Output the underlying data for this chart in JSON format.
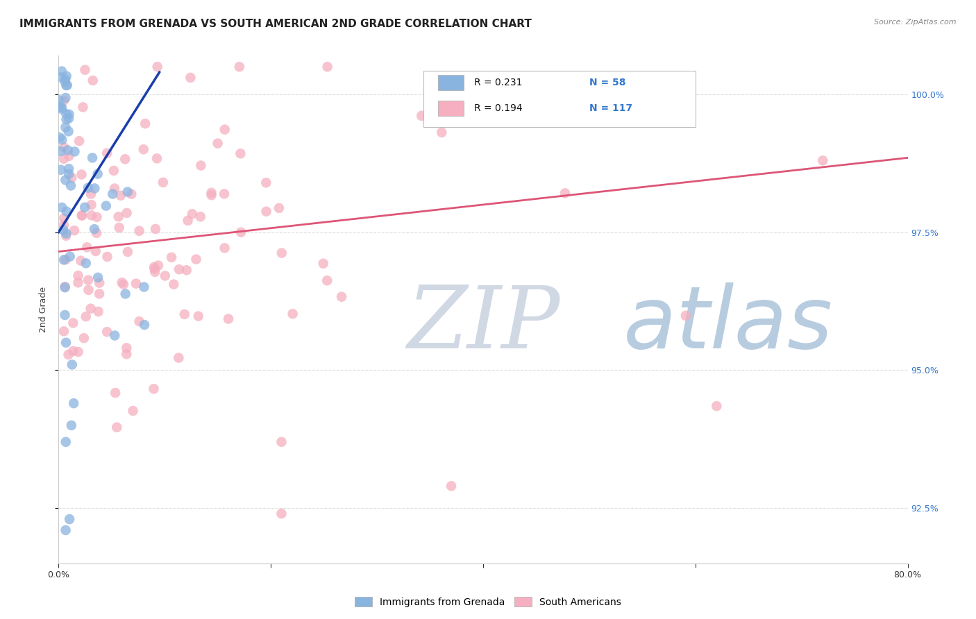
{
  "title": "IMMIGRANTS FROM GRENADA VS SOUTH AMERICAN 2ND GRADE CORRELATION CHART",
  "source": "Source: ZipAtlas.com",
  "ylabel": "2nd Grade",
  "xlim": [
    0.0,
    0.8
  ],
  "ylim": [
    0.915,
    1.007
  ],
  "yticks": [
    0.925,
    0.95,
    0.975,
    1.0
  ],
  "ytick_labels": [
    "92.5%",
    "95.0%",
    "97.5%",
    "100.0%"
  ],
  "xticks": [
    0.0,
    0.2,
    0.4,
    0.6,
    0.8
  ],
  "xtick_labels": [
    "0.0%",
    "",
    "",
    "",
    "80.0%"
  ],
  "r_blue": 0.231,
  "n_blue": 58,
  "r_pink": 0.194,
  "n_pink": 117,
  "legend_labels": [
    "Immigrants from Grenada",
    "South Americans"
  ],
  "blue_color": "#8ab4e0",
  "pink_color": "#f5afc0",
  "blue_line_color": "#1a3faa",
  "pink_line_color": "#dd5577",
  "watermark_zip_color": "#c5d5e8",
  "watermark_atlas_color": "#b8cce0",
  "background_color": "#ffffff",
  "grid_color": "#dddddd",
  "title_fontsize": 11,
  "axis_label_fontsize": 9,
  "tick_fontsize": 9,
  "right_tick_color": "#3377cc",
  "legend_text_color": "#3377cc",
  "seed": 12345,
  "blue_trend_x0": 0.0,
  "blue_trend_x1": 0.095,
  "blue_trend_y0": 0.975,
  "blue_trend_y1": 1.004,
  "pink_trend_x0": 0.0,
  "pink_trend_x1": 0.8,
  "pink_trend_y0": 0.9715,
  "pink_trend_y1": 0.9885
}
